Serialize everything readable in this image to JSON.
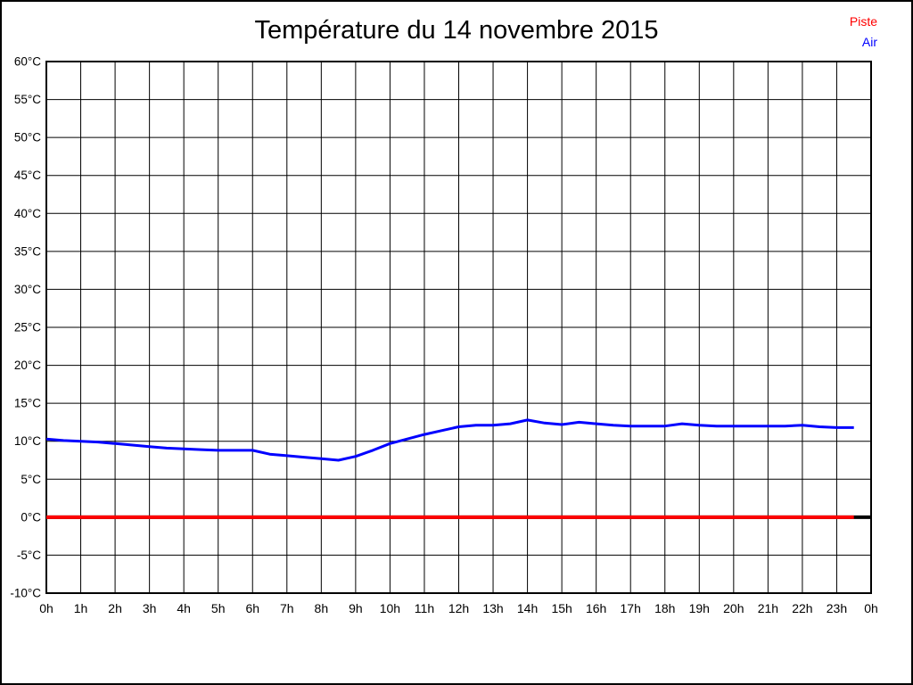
{
  "chart_data": {
    "type": "line",
    "title": "Température du 14 novembre 2015",
    "xlabel": "",
    "ylabel": "",
    "xlim": [
      0,
      24
    ],
    "ylim": [
      -10,
      60
    ],
    "grid": true,
    "legend_position": "top-right",
    "zero_line": {
      "value": 0,
      "color": "#000000"
    },
    "x_ticks": [
      "0h",
      "1h",
      "2h",
      "3h",
      "4h",
      "5h",
      "6h",
      "7h",
      "8h",
      "9h",
      "10h",
      "11h",
      "12h",
      "13h",
      "14h",
      "15h",
      "16h",
      "17h",
      "18h",
      "19h",
      "20h",
      "21h",
      "22h",
      "23h",
      "0h"
    ],
    "y_ticks": [
      "60°C",
      "55°C",
      "50°C",
      "45°C",
      "40°C",
      "35°C",
      "30°C",
      "25°C",
      "20°C",
      "15°C",
      "10°C",
      "5°C",
      "0°C",
      "-5°C",
      "-10°C"
    ],
    "y_tick_values": [
      60,
      55,
      50,
      45,
      40,
      35,
      30,
      25,
      20,
      15,
      10,
      5,
      0,
      -5,
      -10
    ],
    "series": [
      {
        "name": "Piste",
        "color": "#ff0000",
        "x": [
          0,
          0.5,
          1,
          1.5,
          2,
          2.5,
          3,
          3.5,
          4,
          4.5,
          5,
          5.5,
          6,
          6.5,
          7,
          7.5,
          8,
          8.5,
          9,
          9.5,
          10,
          10.5,
          11,
          11.5,
          12,
          12.5,
          13,
          13.5,
          14,
          14.5,
          15,
          15.5,
          16,
          16.5,
          17,
          17.5,
          18,
          18.5,
          19,
          19.5,
          20,
          20.5,
          21,
          21.5,
          22,
          22.5,
          23,
          23.5
        ],
        "values": [
          0,
          0,
          0,
          0,
          0,
          0,
          0,
          0,
          0,
          0,
          0,
          0,
          0,
          0,
          0,
          0,
          0,
          0,
          0,
          0,
          0,
          0,
          0,
          0,
          0,
          0,
          0,
          0,
          0,
          0,
          0,
          0,
          0,
          0,
          0,
          0,
          0,
          0,
          0,
          0,
          0,
          0,
          0,
          0,
          0,
          0,
          0,
          0
        ]
      },
      {
        "name": "Air",
        "color": "#0000ff",
        "x": [
          0,
          0.5,
          1,
          1.5,
          2,
          2.5,
          3,
          3.5,
          4,
          4.5,
          5,
          5.5,
          6,
          6.5,
          7,
          7.5,
          8,
          8.5,
          9,
          9.5,
          10,
          10.5,
          11,
          11.5,
          12,
          12.5,
          13,
          13.5,
          14,
          14.5,
          15,
          15.5,
          16,
          16.5,
          17,
          17.5,
          18,
          18.5,
          19,
          19.5,
          20,
          20.5,
          21,
          21.5,
          22,
          22.5,
          23,
          23.5
        ],
        "values": [
          10.3,
          10.1,
          10.0,
          9.9,
          9.7,
          9.5,
          9.3,
          9.1,
          9.0,
          8.9,
          8.8,
          8.8,
          8.8,
          8.3,
          8.1,
          7.9,
          7.7,
          7.5,
          8.0,
          8.8,
          9.7,
          10.3,
          10.9,
          11.4,
          11.9,
          12.1,
          12.1,
          12.3,
          12.8,
          12.4,
          12.2,
          12.5,
          12.3,
          12.1,
          12.0,
          12.0,
          12.0,
          12.3,
          12.1,
          12.0,
          12.0,
          12.0,
          12.0,
          12.0,
          12.1,
          11.9,
          11.8,
          11.8
        ]
      }
    ]
  }
}
